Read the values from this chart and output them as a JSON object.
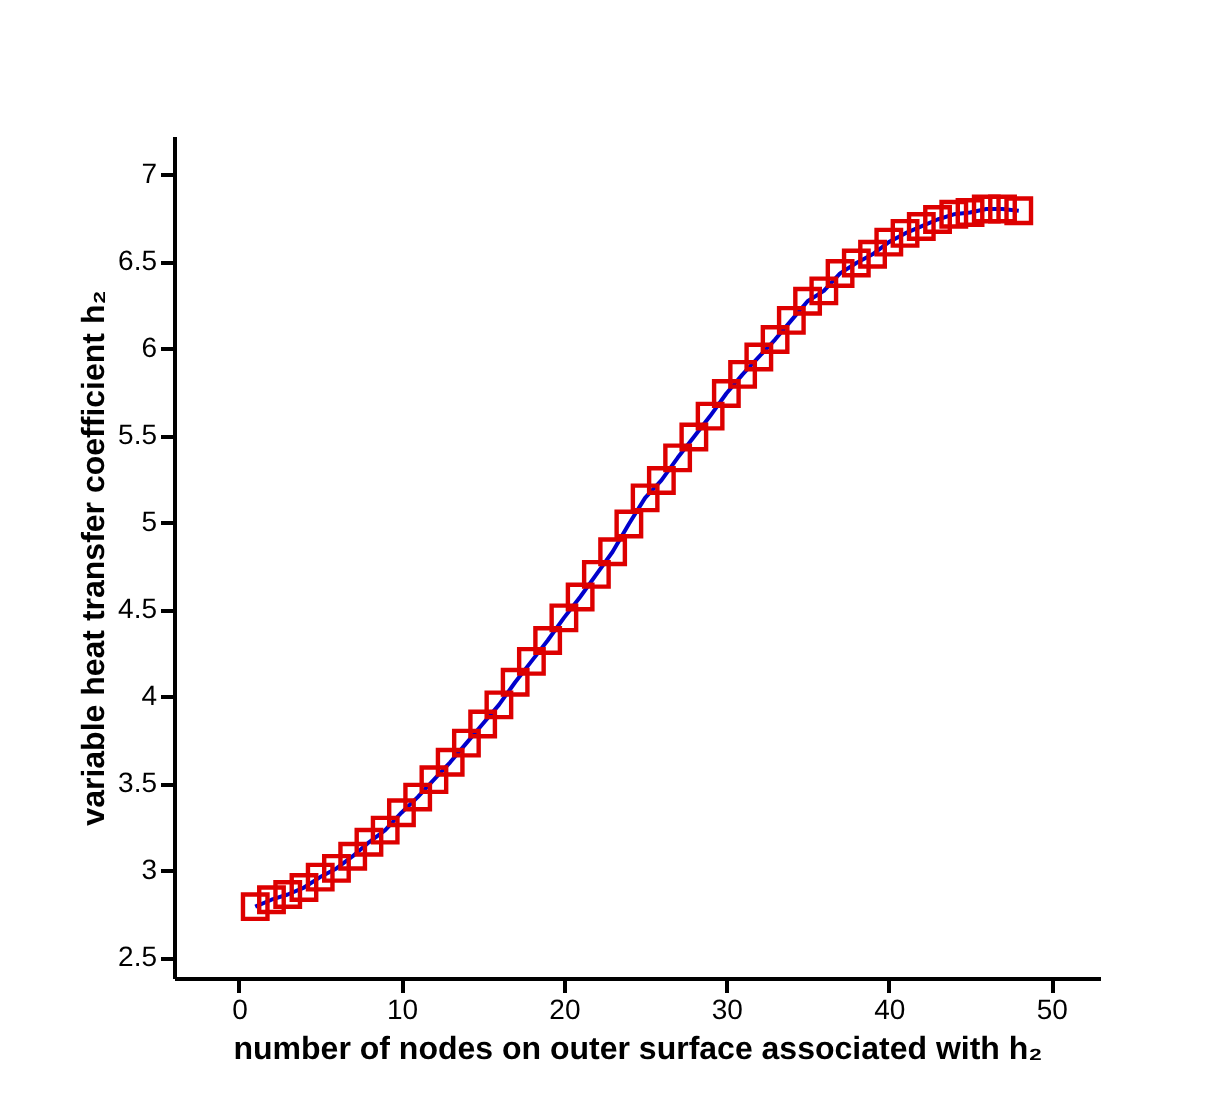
{
  "chart_data": {
    "type": "line",
    "xlabel": "number of nodes on outer surface associated with h₂",
    "ylabel": "variable heat transfer coefficient h₂",
    "x": [
      1,
      2,
      3,
      4,
      5,
      6,
      7,
      8,
      9,
      10,
      11,
      12,
      13,
      14,
      15,
      16,
      17,
      18,
      19,
      20,
      21,
      22,
      23,
      24,
      25,
      26,
      27,
      28,
      29,
      30,
      31,
      32,
      33,
      34,
      35,
      36,
      37,
      38,
      39,
      40,
      41,
      42,
      43,
      44,
      45,
      46,
      47,
      48
    ],
    "series": [
      {
        "color": "#0000cc",
        "marker": "none",
        "values": [
          2.79,
          2.83,
          2.86,
          2.9,
          2.96,
          3.01,
          3.08,
          3.16,
          3.23,
          3.33,
          3.42,
          3.52,
          3.62,
          3.73,
          3.84,
          3.95,
          4.08,
          4.2,
          4.32,
          4.45,
          4.57,
          4.7,
          4.83,
          4.99,
          5.14,
          5.24,
          5.37,
          5.49,
          5.61,
          5.74,
          5.85,
          5.95,
          6.05,
          6.16,
          6.27,
          6.33,
          6.43,
          6.49,
          6.54,
          6.61,
          6.66,
          6.7,
          6.74,
          6.77,
          6.78,
          6.8,
          6.8,
          6.79
        ]
      },
      {
        "type": "scatter",
        "color": "#dd0000",
        "marker": "square",
        "values": [
          2.79,
          2.83,
          2.86,
          2.9,
          2.96,
          3.01,
          3.08,
          3.16,
          3.23,
          3.33,
          3.42,
          3.52,
          3.62,
          3.73,
          3.84,
          3.95,
          4.08,
          4.2,
          4.32,
          4.45,
          4.57,
          4.7,
          4.83,
          4.99,
          5.14,
          5.24,
          5.37,
          5.49,
          5.61,
          5.74,
          5.85,
          5.95,
          6.05,
          6.16,
          6.27,
          6.33,
          6.43,
          6.49,
          6.54,
          6.61,
          6.66,
          6.7,
          6.74,
          6.77,
          6.78,
          6.8,
          6.8,
          6.79
        ]
      }
    ],
    "line_style": "solid",
    "grid": false,
    "xlim": [
      -4,
      53
    ],
    "xticks": [
      0,
      10,
      20,
      30,
      40,
      50
    ],
    "ylim": [
      2.38,
      7.22
    ],
    "yticks": [
      2.5,
      3,
      3.5,
      4,
      4.5,
      5,
      5.5,
      6,
      6.5,
      7
    ]
  }
}
